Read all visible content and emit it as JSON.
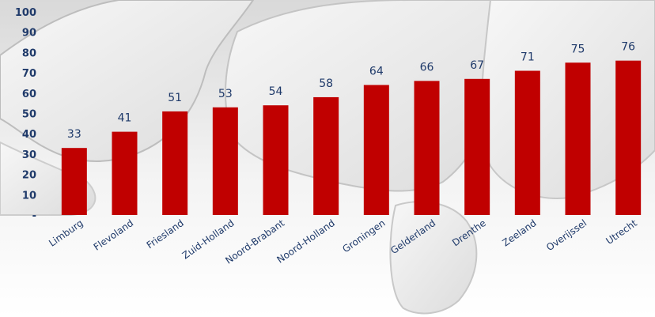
{
  "chart_data": {
    "type": "bar",
    "title": "",
    "xlabel": "",
    "ylabel": "",
    "categories": [
      "Limburg",
      "Flevoland",
      "Friesland",
      "Zuid-Holland",
      "Noord-Brabant",
      "Noord-Holland",
      "Groningen",
      "Gelderland",
      "Drenthe",
      "Zeeland",
      "Overijssel",
      "Utrecht"
    ],
    "values": [
      33,
      41,
      51,
      53,
      54,
      58,
      64,
      66,
      67,
      71,
      75,
      76
    ],
    "ylim": [
      0,
      100
    ],
    "yticks": [
      0,
      10,
      20,
      30,
      40,
      50,
      60,
      70,
      80,
      90,
      100
    ],
    "ytick_labels": [
      "-",
      "10",
      "20",
      "30",
      "40",
      "50",
      "60",
      "70",
      "80",
      "90",
      "100"
    ],
    "bar_color": "#c00000",
    "grid": false,
    "data_labels": true,
    "legend": false,
    "background": "3D map of the Netherlands provinces (grey, white)"
  }
}
